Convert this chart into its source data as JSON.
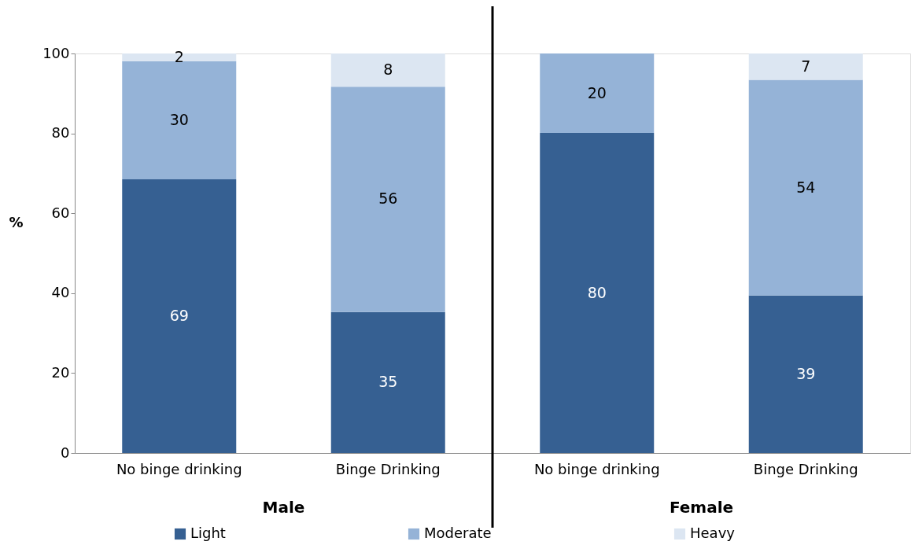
{
  "chart_data": {
    "type": "bar",
    "stacked": true,
    "ylabel": "%",
    "categories": [
      "No binge drinking",
      "Binge Drinking",
      "No binge drinking",
      "Binge Drinking"
    ],
    "series": [
      {
        "name": "Light",
        "color": "#366092",
        "values": [
          68.5,
          35.3,
          80.1,
          39.4
        ],
        "value_labels": [
          "69",
          "35",
          "80",
          "39"
        ]
      },
      {
        "name": "Moderate",
        "color": "#95b3d7",
        "values": [
          29.6,
          56.4,
          19.9,
          54.0
        ],
        "value_labels": [
          "30",
          "56",
          "20",
          "54"
        ]
      },
      {
        "name": "Heavy",
        "color": "#dce6f2",
        "values": [
          1.9,
          8.3,
          null,
          6.6
        ],
        "value_labels": [
          "2",
          "8",
          null,
          "7"
        ]
      }
    ],
    "annotations": [
      "Male",
      "Female"
    ],
    "ylim": [
      0,
      100
    ],
    "yticks": [
      0,
      20,
      40,
      60,
      80,
      100
    ],
    "grid": false,
    "legend": "bottom"
  }
}
